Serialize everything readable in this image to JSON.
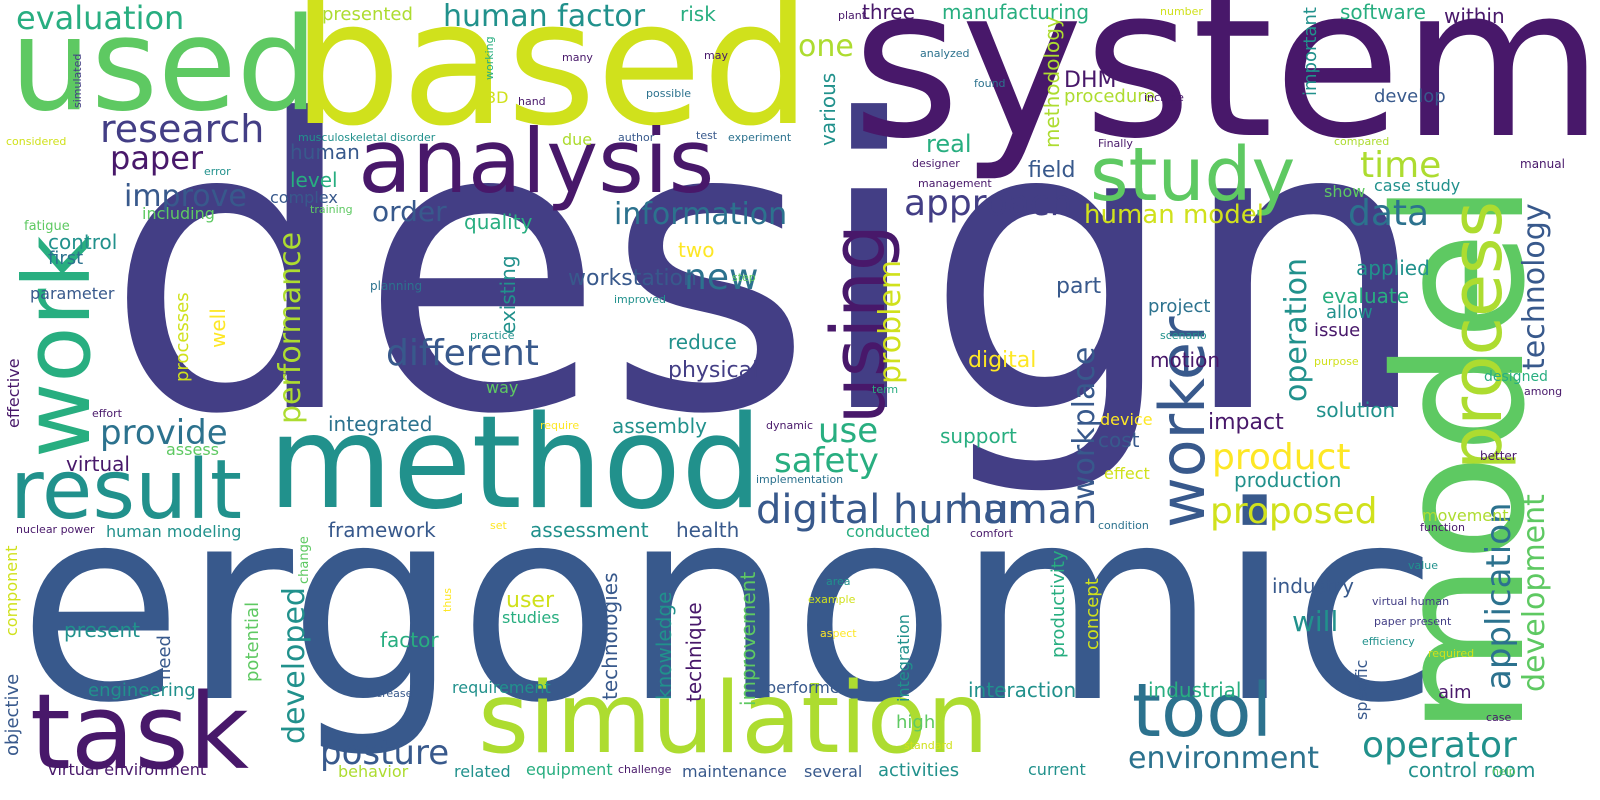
{
  "words": {
    "design": "design",
    "ergonomic": "ergonomic",
    "system": "system",
    "model": "model",
    "based": "based",
    "method": "method",
    "used": "used",
    "analysis": "analysis",
    "simulation": "simulation",
    "work": "work",
    "task": "task",
    "result": "result",
    "using": "using",
    "study": "study",
    "tool": "tool",
    "worker": "worker",
    "process": "process",
    "evaluation": "evaluation",
    "human_factor": "human factor",
    "research": "research",
    "paper": "paper",
    "improve": "improve",
    "approach": "approach",
    "information": "information",
    "time": "time",
    "data": "data",
    "order": "order",
    "human_model": "human model",
    "new": "new",
    "different": "different",
    "digital_human": "digital human",
    "human": "human",
    "provide": "provide",
    "safety": "safety",
    "use": "use",
    "product": "product",
    "proposed": "proposed",
    "operator": "operator",
    "environment": "environment",
    "application": "application",
    "development": "development",
    "technology": "technology",
    "workplace": "workplace",
    "operation": "operation",
    "performance": "performance",
    "problem": "problem",
    "posture": "posture",
    "developed": "developed",
    "DHM": "DHM",
    "one": "one",
    "three": "three",
    "manufacturing": "manufacturing",
    "presented": "presented",
    "risk": "risk",
    "software": "software",
    "within": "within",
    "important": "important",
    "methodology": "methodology",
    "procedure": "procedure",
    "develop": "develop",
    "various": "various",
    "real": "real",
    "field": "field",
    "case_study": "case study",
    "manual": "manual",
    "show": "show",
    "level": "level",
    "complex": "complex",
    "quality": "quality",
    "control": "control",
    "first": "first",
    "parameter": "parameter",
    "including": "including",
    "fatigue": "fatigue",
    "two": "two",
    "workstation": "workstation",
    "existing": "existing",
    "processes": "processes",
    "well": "well",
    "part": "part",
    "applied": "applied",
    "evaluate": "evaluate",
    "allow": "allow",
    "issue": "issue",
    "project": "project",
    "reduce": "reduce",
    "physical": "physical",
    "motion": "motion",
    "digital": "digital",
    "designed": "designed",
    "among": "among",
    "solution": "solution",
    "impact": "impact",
    "cost": "cost",
    "effect": "effect",
    "support": "support",
    "integrated": "integrated",
    "assembly": "assembly",
    "virtual": "virtual",
    "assess": "assess",
    "effective": "effective",
    "production": "production",
    "better": "better",
    "movement": "movement",
    "function": "function",
    "framework": "framework",
    "assessment": "assessment",
    "health": "health",
    "conducted": "conducted",
    "human_modeling": "human modeling",
    "nuclear_power": "nuclear power",
    "component": "component",
    "potential": "potential",
    "change": "change",
    "industry": "industry",
    "will": "will",
    "productivity": "productivity",
    "concept": "concept",
    "user": "user",
    "studies": "studies",
    "technologies": "technologies",
    "knowledge": "knowledge",
    "technique": "technique",
    "improvement": "improvement",
    "present": "present",
    "factor": "factor",
    "need": "need",
    "objective": "objective",
    "engineering": "engineering",
    "requirement": "requirement",
    "performed": "performed",
    "interaction": "interaction",
    "industrial": "industrial",
    "integration": "integration",
    "high": "high",
    "aim": "aim",
    "specific": "specific",
    "control_room": "control room",
    "current": "current",
    "several": "several",
    "activities": "activities",
    "maintenance": "maintenance",
    "equipment": "equipment",
    "related": "related",
    "behavior": "behavior",
    "virtual_environment": "virtual environment",
    "challenge": "challenge",
    "standard": "standard",
    "increase": "increase",
    "aspect": "aspect",
    "example": "example",
    "area": "area",
    "thus": "thus",
    "value": "value",
    "virtual_human": "virtual human",
    "paper_present": "paper present",
    "efficiency": "efficiency",
    "required": "required",
    "case": "case",
    "help": "help",
    "comfort": "comfort",
    "condition": "condition",
    "set": "set",
    "implementation": "implementation",
    "dynamic": "dynamic",
    "require": "require",
    "device": "device",
    "term": "term",
    "way": "way",
    "purpose": "purpose",
    "scenario": "scenario",
    "practice": "practice",
    "improved": "improved",
    "step": "step",
    "planning": "planning",
    "training": "training",
    "error": "error",
    "considered": "considered",
    "musculoskeletal_disorder": "musculoskeletal disorder",
    "author": "author",
    "test": "test",
    "experiment": "experiment",
    "due": "due",
    "hand": "hand",
    "3D": "3D",
    "working": "working",
    "simulated": "simulated",
    "many": "many",
    "may": "may",
    "possible": "possible",
    "plant": "plant",
    "analyzed": "analyzed",
    "number": "number",
    "found": "found",
    "include": "include",
    "Finally": "Finally",
    "compared": "compared",
    "designer": "designer",
    "management": "management",
    "effort": "effort"
  },
  "colors": {
    "purple_dark": "#48186a",
    "indigo": "#433e85",
    "navy": "#38598c",
    "blue_teal": "#2c728e",
    "teal": "#21918c",
    "green_teal": "#28ae80",
    "green": "#5ec962",
    "lime": "#addc30",
    "yellow": "#d0e11c",
    "yellow_bright": "#fde725"
  }
}
